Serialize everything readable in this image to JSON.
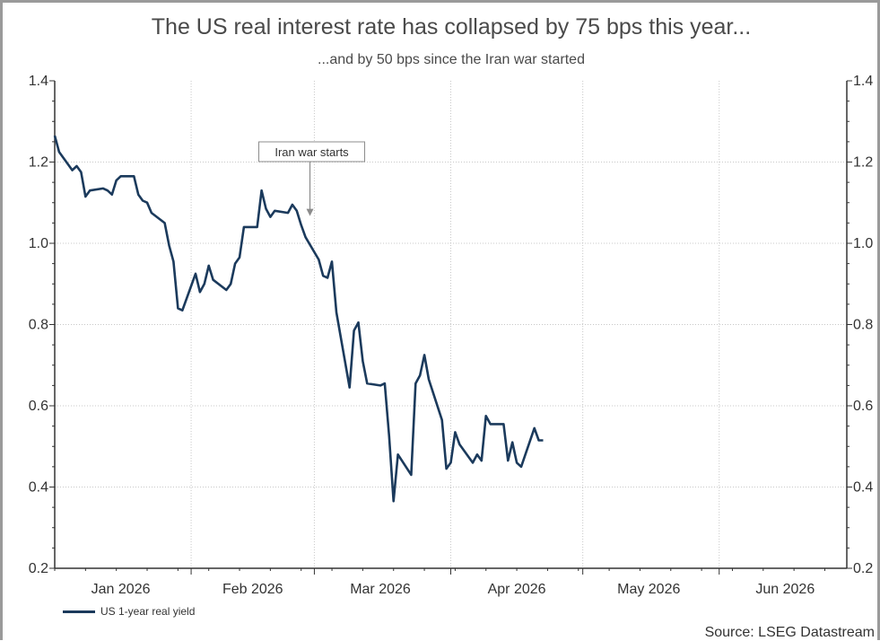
{
  "chart_data": {
    "type": "line",
    "title": "The US real interest rate has collapsed by 75 bps this year...",
    "subtitle": "...and by 50 bps since the Iran war started",
    "xlabel": "",
    "ylabel": "",
    "ylim": [
      0.2,
      1.4
    ],
    "y_ticks": [
      "0.2",
      "0.4",
      "0.6",
      "0.8",
      "1.0",
      "1.2",
      "1.4"
    ],
    "y_axes": "left and right",
    "x_range": [
      "2026-01-01",
      "2026-06-30"
    ],
    "x_ticks": [
      {
        "label": "Jan 2026",
        "date": "2026-01-16"
      },
      {
        "label": "Feb 2026",
        "date": "2026-02-15"
      },
      {
        "label": "Mar 2026",
        "date": "2026-03-16"
      },
      {
        "label": "Apr 2026",
        "date": "2026-04-16"
      },
      {
        "label": "May 2026",
        "date": "2026-05-16"
      },
      {
        "label": "Jun 2026",
        "date": "2026-06-16"
      }
    ],
    "grid": true,
    "legend_position": "bottom-left",
    "annotation": {
      "text": "Iran war starts",
      "date": "2026-02-28",
      "value": 1.065
    },
    "source": "Source: LSEG Datastream",
    "series": [
      {
        "name": "US 1-year real yield",
        "color": "#1b3a5c",
        "points": [
          [
            "2026-01-01",
            1.265
          ],
          [
            "2026-01-02",
            1.225
          ],
          [
            "2026-01-05",
            1.18
          ],
          [
            "2026-01-06",
            1.19
          ],
          [
            "2026-01-07",
            1.175
          ],
          [
            "2026-01-08",
            1.115
          ],
          [
            "2026-01-09",
            1.13
          ],
          [
            "2026-01-12",
            1.135
          ],
          [
            "2026-01-13",
            1.13
          ],
          [
            "2026-01-14",
            1.12
          ],
          [
            "2026-01-15",
            1.155
          ],
          [
            "2026-01-16",
            1.165
          ],
          [
            "2026-01-19",
            1.165
          ],
          [
            "2026-01-20",
            1.12
          ],
          [
            "2026-01-21",
            1.105
          ],
          [
            "2026-01-22",
            1.1
          ],
          [
            "2026-01-23",
            1.075
          ],
          [
            "2026-01-26",
            1.05
          ],
          [
            "2026-01-27",
            0.995
          ],
          [
            "2026-01-28",
            0.955
          ],
          [
            "2026-01-29",
            0.84
          ],
          [
            "2026-01-30",
            0.835
          ],
          [
            "2026-02-02",
            0.925
          ],
          [
            "2026-02-03",
            0.88
          ],
          [
            "2026-02-04",
            0.9
          ],
          [
            "2026-02-05",
            0.945
          ],
          [
            "2026-02-06",
            0.91
          ],
          [
            "2026-02-09",
            0.885
          ],
          [
            "2026-02-10",
            0.9
          ],
          [
            "2026-02-11",
            0.95
          ],
          [
            "2026-02-12",
            0.965
          ],
          [
            "2026-02-13",
            1.04
          ],
          [
            "2026-02-16",
            1.04
          ],
          [
            "2026-02-17",
            1.13
          ],
          [
            "2026-02-18",
            1.085
          ],
          [
            "2026-02-19",
            1.065
          ],
          [
            "2026-02-20",
            1.08
          ],
          [
            "2026-02-23",
            1.075
          ],
          [
            "2026-02-24",
            1.095
          ],
          [
            "2026-02-25",
            1.08
          ],
          [
            "2026-02-26",
            1.045
          ],
          [
            "2026-02-27",
            1.015
          ],
          [
            "2026-03-02",
            0.96
          ],
          [
            "2026-03-03",
            0.92
          ],
          [
            "2026-03-04",
            0.915
          ],
          [
            "2026-03-05",
            0.955
          ],
          [
            "2026-03-06",
            0.83
          ],
          [
            "2026-03-09",
            0.645
          ],
          [
            "2026-03-10",
            0.785
          ],
          [
            "2026-03-11",
            0.805
          ],
          [
            "2026-03-12",
            0.71
          ],
          [
            "2026-03-13",
            0.655
          ],
          [
            "2026-03-16",
            0.65
          ],
          [
            "2026-03-17",
            0.655
          ],
          [
            "2026-03-18",
            0.525
          ],
          [
            "2026-03-19",
            0.365
          ],
          [
            "2026-03-20",
            0.48
          ],
          [
            "2026-03-23",
            0.43
          ],
          [
            "2026-03-24",
            0.655
          ],
          [
            "2026-03-25",
            0.675
          ],
          [
            "2026-03-26",
            0.725
          ],
          [
            "2026-03-27",
            0.665
          ],
          [
            "2026-03-30",
            0.565
          ],
          [
            "2026-03-31",
            0.445
          ],
          [
            "2026-04-01",
            0.46
          ],
          [
            "2026-04-02",
            0.535
          ],
          [
            "2026-04-03",
            0.505
          ],
          [
            "2026-04-06",
            0.46
          ],
          [
            "2026-04-07",
            0.48
          ],
          [
            "2026-04-08",
            0.465
          ],
          [
            "2026-04-09",
            0.575
          ],
          [
            "2026-04-10",
            0.555
          ],
          [
            "2026-04-13",
            0.555
          ],
          [
            "2026-04-14",
            0.465
          ],
          [
            "2026-04-15",
            0.51
          ],
          [
            "2026-04-16",
            0.46
          ],
          [
            "2026-04-17",
            0.45
          ],
          [
            "2026-04-20",
            0.545
          ],
          [
            "2026-04-21",
            0.515
          ],
          [
            "2026-04-22",
            0.515
          ]
        ]
      }
    ]
  }
}
